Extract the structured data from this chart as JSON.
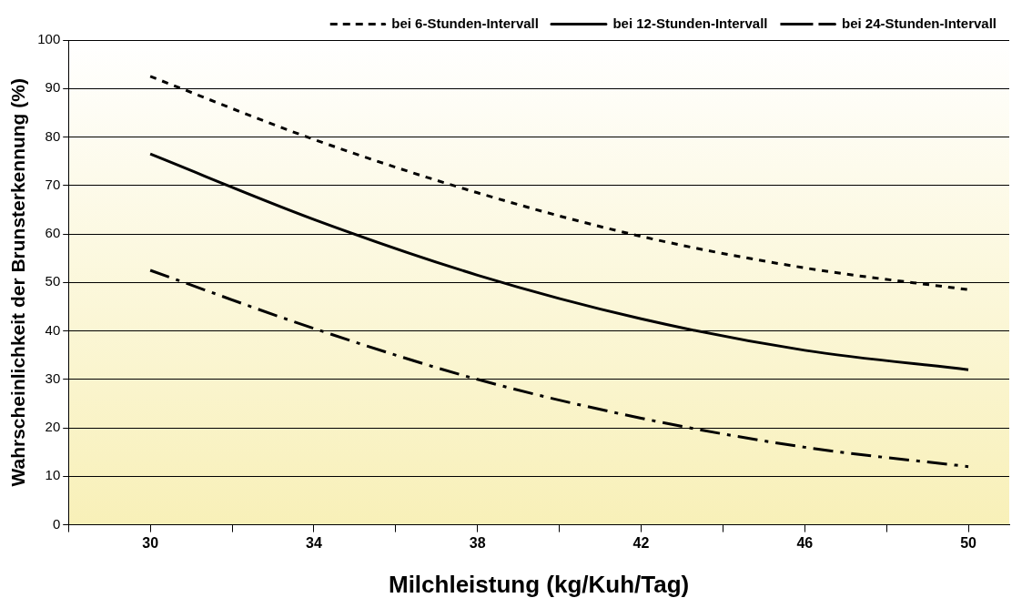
{
  "chart_data": {
    "type": "line",
    "xlabel": "Milchleistung (kg/Kuh/Tag)",
    "ylabel": "Wahrscheinlichkeit der Brunsterkennung (%)",
    "x": [
      30,
      34,
      38,
      42,
      46,
      50
    ],
    "series": [
      {
        "name": "bei 6-Stunden-Intervall",
        "color": "#000000",
        "line_style": "dotted",
        "values": [
          92.5,
          79.5,
          68.5,
          59.5,
          53,
          48.5
        ]
      },
      {
        "name": "bei 12-Stunden-Intervall",
        "color": "#000000",
        "line_style": "solid",
        "values": [
          76.5,
          63,
          51.5,
          42.5,
          36,
          32
        ]
      },
      {
        "name": "bei 24-Stunden-Intervall",
        "color": "#000000",
        "line_style": "dashed",
        "values": [
          52.5,
          40.5,
          30,
          22,
          16,
          12
        ]
      }
    ],
    "xlim": [
      28,
      51
    ],
    "xticks": [
      {
        "value": 28,
        "label": null
      },
      30,
      {
        "value": 32,
        "label": null
      },
      34,
      {
        "value": 36,
        "label": null
      },
      38,
      {
        "value": 40,
        "label": null
      },
      42,
      {
        "value": 44,
        "label": null
      },
      46,
      {
        "value": 48,
        "label": null
      },
      50
    ],
    "ylim": [
      0,
      100
    ],
    "yticks": [
      0,
      10,
      20,
      30,
      40,
      50,
      60,
      70,
      80,
      90,
      100
    ],
    "grid": "y",
    "legend": "top right",
    "marker": "none"
  }
}
